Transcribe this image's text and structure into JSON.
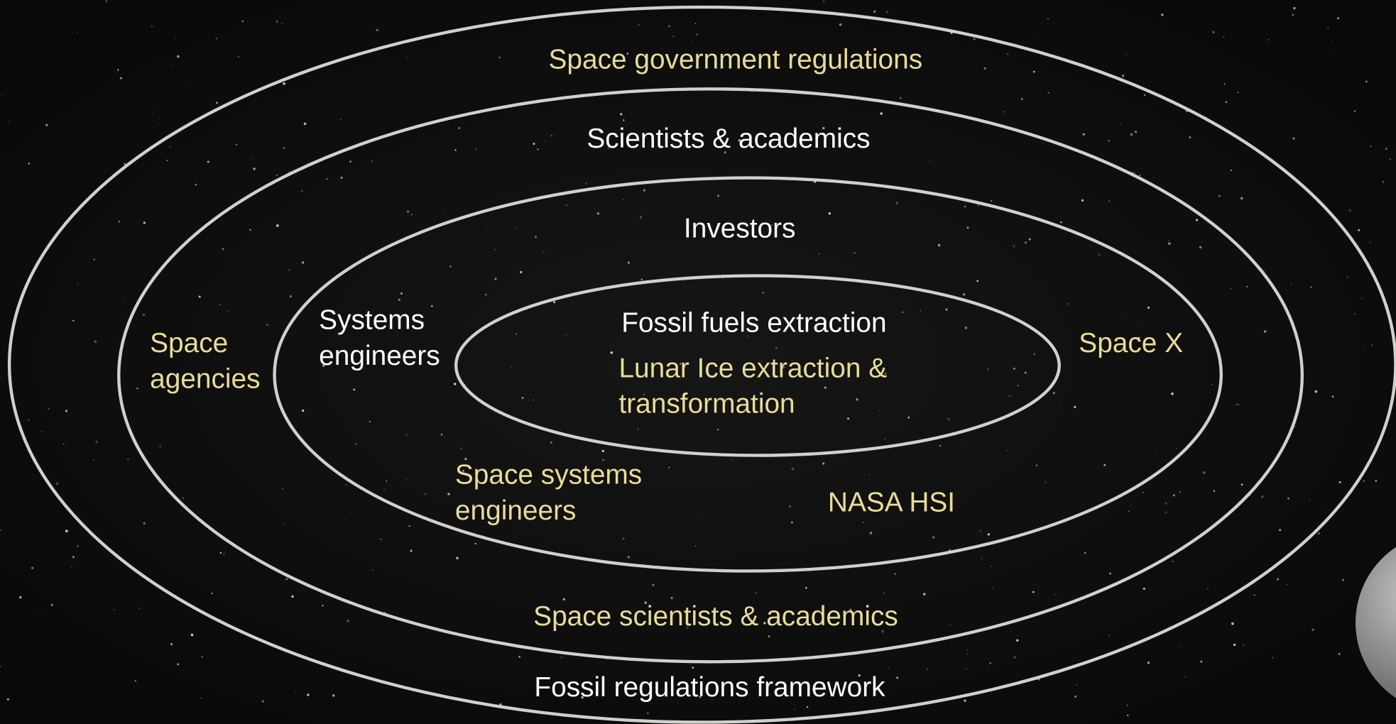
{
  "rings": [
    {
      "labels": [
        {
          "lines": [
            "Space government regulations"
          ]
        },
        {
          "lines": [
            "Fossil regulations framework"
          ]
        }
      ]
    },
    {
      "labels": [
        {
          "lines": [
            "Scientists & academics"
          ]
        },
        {
          "lines": [
            "Space",
            "agencies"
          ]
        },
        {
          "lines": [
            "Space X"
          ]
        },
        {
          "lines": [
            "Space scientists & academics"
          ]
        }
      ]
    },
    {
      "labels": [
        {
          "lines": [
            "Investors"
          ]
        },
        {
          "lines": [
            "Systems",
            "engineers"
          ]
        },
        {
          "lines": [
            "Space systems",
            "engineers"
          ]
        },
        {
          "lines": [
            "NASA HSI"
          ]
        }
      ]
    },
    {
      "labels": [
        {
          "lines": [
            "Fossil fuels extraction"
          ]
        },
        {
          "lines": [
            "Lunar Ice extraction &",
            "transformation"
          ]
        }
      ]
    }
  ]
}
